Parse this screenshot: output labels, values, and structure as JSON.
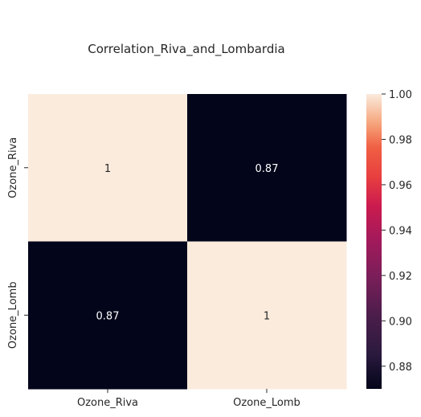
{
  "chart_data": {
    "type": "heatmap",
    "title": "Correlation_Riva_and_Lombardia",
    "xlabel": "",
    "ylabel": "",
    "x_categories": [
      "Ozone_Riva",
      "Ozone_Lomb"
    ],
    "y_categories": [
      "Ozone_Riva",
      "Ozone_Lomb"
    ],
    "values": [
      [
        1.0,
        0.87
      ],
      [
        0.87,
        1.0
      ]
    ],
    "annotations": [
      [
        "1",
        "0.87"
      ],
      [
        "0.87",
        "1"
      ]
    ],
    "colorbar": {
      "range": [
        0.87,
        1.0
      ],
      "ticks": [
        0.88,
        0.9,
        0.92,
        0.94,
        0.96,
        0.98,
        1.0
      ],
      "tick_labels": [
        "0.88",
        "0.90",
        "0.92",
        "0.94",
        "0.96",
        "0.98",
        "1.00"
      ]
    },
    "colormap": "rocket",
    "colors": {
      "low": "#03051a",
      "high": "#faebdd",
      "annotation_on_dark": "#ffffff",
      "annotation_on_light": "#262626"
    }
  }
}
